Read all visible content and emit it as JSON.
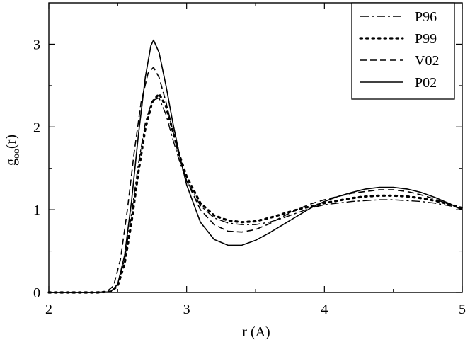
{
  "chart_data": {
    "type": "line",
    "xlabel": "r (A)",
    "ylabel": "g",
    "ylabel_sub": "oo",
    "ylabel_suffix": "(r)",
    "xlim": [
      2,
      5
    ],
    "ylim": [
      0,
      3.5
    ],
    "x_ticks": [
      2,
      3,
      4,
      5
    ],
    "y_ticks": [
      0,
      1,
      2,
      3
    ],
    "legend_position": "top-right",
    "series": [
      {
        "name": "P96",
        "style": "dash-dot",
        "points": [
          [
            2.0,
            0.0
          ],
          [
            2.35,
            0.0
          ],
          [
            2.45,
            0.01
          ],
          [
            2.5,
            0.1
          ],
          [
            2.55,
            0.4
          ],
          [
            2.6,
            0.95
          ],
          [
            2.65,
            1.55
          ],
          [
            2.7,
            2.05
          ],
          [
            2.75,
            2.32
          ],
          [
            2.8,
            2.35
          ],
          [
            2.85,
            2.15
          ],
          [
            2.9,
            1.85
          ],
          [
            2.95,
            1.58
          ],
          [
            3.0,
            1.35
          ],
          [
            3.1,
            1.05
          ],
          [
            3.2,
            0.9
          ],
          [
            3.3,
            0.84
          ],
          [
            3.4,
            0.82
          ],
          [
            3.5,
            0.82
          ],
          [
            3.6,
            0.85
          ],
          [
            3.7,
            0.9
          ],
          [
            3.8,
            0.96
          ],
          [
            3.9,
            1.02
          ],
          [
            4.0,
            1.06
          ],
          [
            4.1,
            1.08
          ],
          [
            4.2,
            1.1
          ],
          [
            4.3,
            1.11
          ],
          [
            4.4,
            1.12
          ],
          [
            4.5,
            1.12
          ],
          [
            4.6,
            1.11
          ],
          [
            4.7,
            1.1
          ],
          [
            4.8,
            1.08
          ],
          [
            4.9,
            1.05
          ],
          [
            5.0,
            1.02
          ]
        ]
      },
      {
        "name": "P99",
        "style": "dotted",
        "points": [
          [
            2.0,
            0.0
          ],
          [
            2.35,
            0.0
          ],
          [
            2.45,
            0.01
          ],
          [
            2.5,
            0.08
          ],
          [
            2.55,
            0.35
          ],
          [
            2.6,
            0.85
          ],
          [
            2.65,
            1.45
          ],
          [
            2.7,
            1.98
          ],
          [
            2.75,
            2.3
          ],
          [
            2.8,
            2.4
          ],
          [
            2.85,
            2.25
          ],
          [
            2.9,
            1.95
          ],
          [
            2.95,
            1.65
          ],
          [
            3.0,
            1.4
          ],
          [
            3.1,
            1.08
          ],
          [
            3.2,
            0.93
          ],
          [
            3.3,
            0.87
          ],
          [
            3.4,
            0.85
          ],
          [
            3.5,
            0.86
          ],
          [
            3.6,
            0.9
          ],
          [
            3.7,
            0.95
          ],
          [
            3.8,
            1.0
          ],
          [
            3.9,
            1.04
          ],
          [
            4.0,
            1.08
          ],
          [
            4.1,
            1.11
          ],
          [
            4.2,
            1.14
          ],
          [
            4.3,
            1.16
          ],
          [
            4.4,
            1.17
          ],
          [
            4.5,
            1.17
          ],
          [
            4.6,
            1.16
          ],
          [
            4.7,
            1.14
          ],
          [
            4.8,
            1.11
          ],
          [
            4.9,
            1.07
          ],
          [
            5.0,
            1.02
          ]
        ]
      },
      {
        "name": "V02",
        "style": "dashed",
        "points": [
          [
            2.0,
            0.0
          ],
          [
            2.35,
            0.0
          ],
          [
            2.42,
            0.01
          ],
          [
            2.47,
            0.08
          ],
          [
            2.52,
            0.4
          ],
          [
            2.57,
            1.0
          ],
          [
            2.62,
            1.7
          ],
          [
            2.67,
            2.3
          ],
          [
            2.72,
            2.65
          ],
          [
            2.76,
            2.72
          ],
          [
            2.8,
            2.6
          ],
          [
            2.85,
            2.3
          ],
          [
            2.9,
            1.95
          ],
          [
            2.95,
            1.62
          ],
          [
            3.0,
            1.35
          ],
          [
            3.1,
            1.0
          ],
          [
            3.2,
            0.82
          ],
          [
            3.3,
            0.74
          ],
          [
            3.4,
            0.73
          ],
          [
            3.5,
            0.76
          ],
          [
            3.6,
            0.83
          ],
          [
            3.7,
            0.92
          ],
          [
            3.8,
            1.0
          ],
          [
            3.9,
            1.07
          ],
          [
            4.0,
            1.12
          ],
          [
            4.1,
            1.16
          ],
          [
            4.2,
            1.2
          ],
          [
            4.3,
            1.22
          ],
          [
            4.4,
            1.24
          ],
          [
            4.5,
            1.24
          ],
          [
            4.6,
            1.22
          ],
          [
            4.7,
            1.18
          ],
          [
            4.8,
            1.13
          ],
          [
            4.9,
            1.07
          ],
          [
            5.0,
            1.0
          ]
        ]
      },
      {
        "name": "P02",
        "style": "solid",
        "points": [
          [
            2.0,
            0.0
          ],
          [
            2.38,
            0.0
          ],
          [
            2.45,
            0.01
          ],
          [
            2.5,
            0.1
          ],
          [
            2.55,
            0.45
          ],
          [
            2.6,
            1.1
          ],
          [
            2.65,
            1.9
          ],
          [
            2.7,
            2.6
          ],
          [
            2.74,
            2.98
          ],
          [
            2.76,
            3.05
          ],
          [
            2.8,
            2.9
          ],
          [
            2.85,
            2.5
          ],
          [
            2.9,
            2.05
          ],
          [
            2.95,
            1.65
          ],
          [
            3.0,
            1.3
          ],
          [
            3.1,
            0.85
          ],
          [
            3.2,
            0.64
          ],
          [
            3.3,
            0.57
          ],
          [
            3.4,
            0.57
          ],
          [
            3.5,
            0.63
          ],
          [
            3.6,
            0.72
          ],
          [
            3.7,
            0.82
          ],
          [
            3.8,
            0.92
          ],
          [
            3.9,
            1.02
          ],
          [
            4.0,
            1.1
          ],
          [
            4.1,
            1.16
          ],
          [
            4.2,
            1.21
          ],
          [
            4.3,
            1.25
          ],
          [
            4.4,
            1.27
          ],
          [
            4.5,
            1.27
          ],
          [
            4.6,
            1.25
          ],
          [
            4.7,
            1.21
          ],
          [
            4.8,
            1.15
          ],
          [
            4.9,
            1.08
          ],
          [
            5.0,
            1.0
          ]
        ]
      }
    ]
  }
}
